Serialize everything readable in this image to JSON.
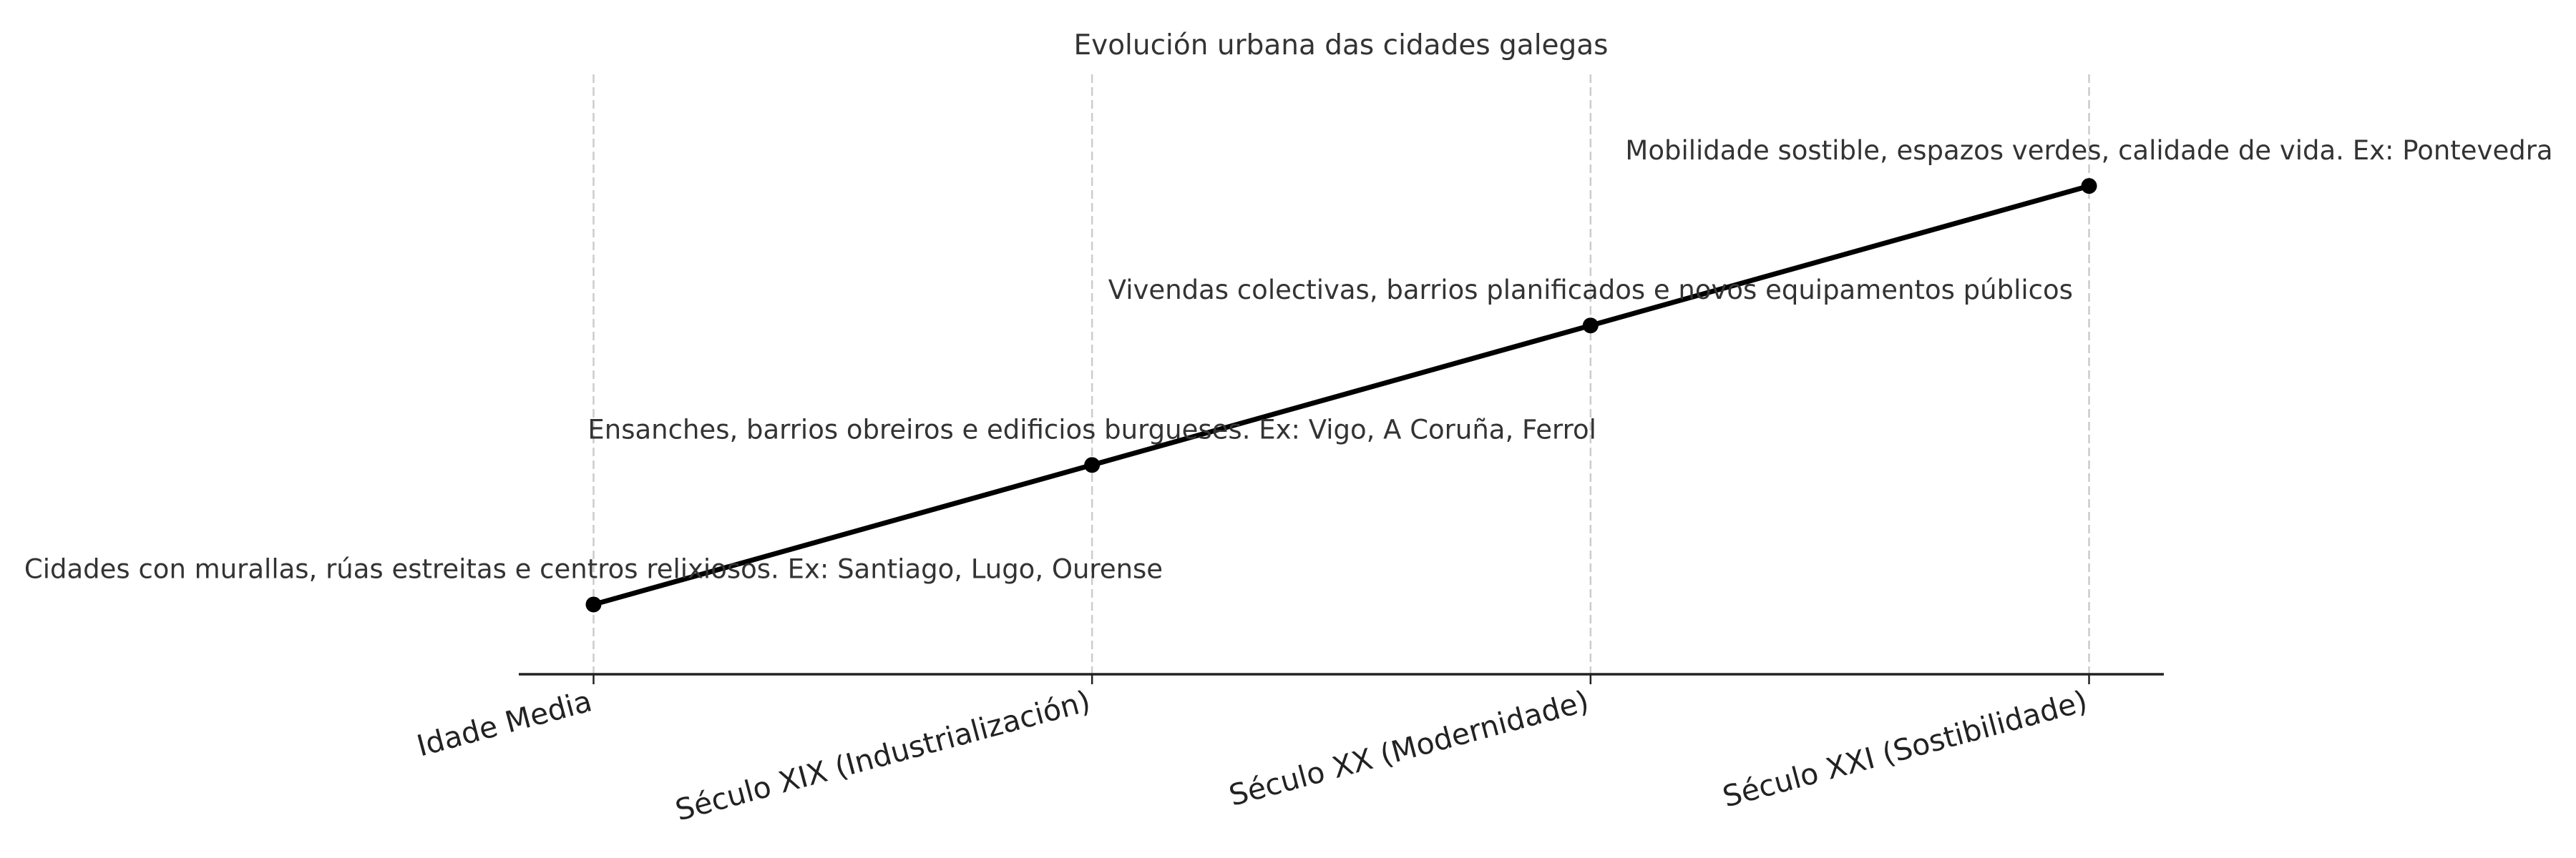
{
  "chart_data": {
    "type": "line",
    "title": "Evolución urbana das cidades galegas",
    "xlabel": "",
    "ylabel": "",
    "categories": [
      "Idade Media",
      "Século XIX (Industrialización)",
      "Século XX (Modernidade)",
      "Século XXI (Sostibilidade)"
    ],
    "values": [
      1,
      2,
      3,
      4
    ],
    "annotations": [
      "Cidades con murallas, rúas estreitas e centros relixiosos. Ex: Santiago, Lugo, Ourense",
      "Ensanches, barrios obreiros e edificios burgueses. Ex: Vigo, A Coruña, Ferrol",
      "Vivendas colectivas, barrios planificados e novos equipamentos públicos",
      "Mobilidade sostible, espazos verdes, calidade de vida. Ex: Pontevedra"
    ],
    "xlim": [
      -0.15,
      3.15
    ],
    "ylim": [
      0.5,
      4.8
    ],
    "grid": "vertical dashed",
    "y_axis_visible": false,
    "line_color": "#000000",
    "grid_color": "#cccccc",
    "text_color": "#333333"
  }
}
